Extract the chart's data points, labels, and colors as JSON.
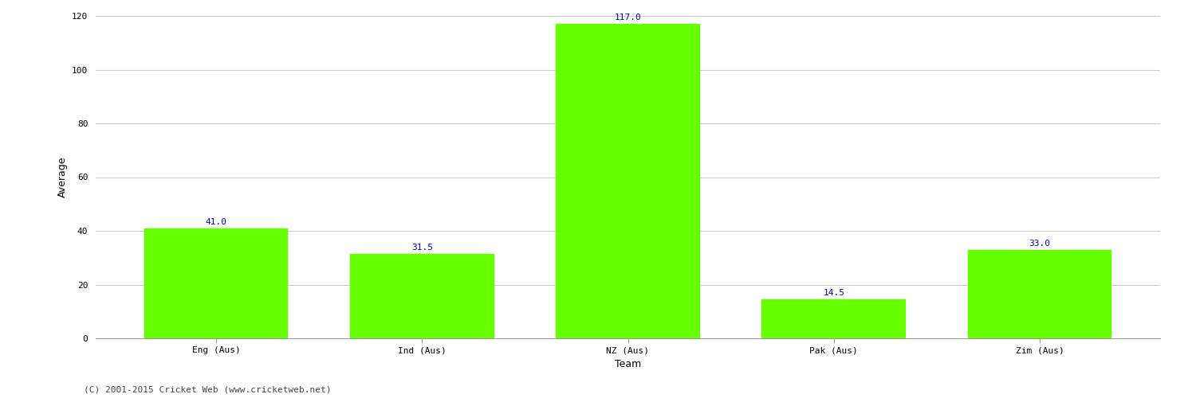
{
  "categories": [
    "Eng (Aus)",
    "Ind (Aus)",
    "NZ (Aus)",
    "Pak (Aus)",
    "Zim (Aus)"
  ],
  "values": [
    41.0,
    31.5,
    117.0,
    14.5,
    33.0
  ],
  "bar_color": "#66ff00",
  "bar_edge_color": "#66ff00",
  "value_label_color": "#0000cc",
  "value_label_fontsize": 8,
  "xlabel": "Team",
  "ylabel": "Average",
  "ylim": [
    0,
    120
  ],
  "yticks": [
    0,
    20,
    40,
    60,
    80,
    100,
    120
  ],
  "grid_color": "#cccccc",
  "background_color": "#ffffff",
  "fig_width": 15.0,
  "fig_height": 5.0,
  "footnote": "(C) 2001-2015 Cricket Web (www.cricketweb.net)",
  "footnote_fontsize": 8,
  "footnote_color": "#444444",
  "xlabel_fontsize": 9,
  "ylabel_fontsize": 9,
  "tick_fontsize": 8,
  "bar_width": 0.7
}
